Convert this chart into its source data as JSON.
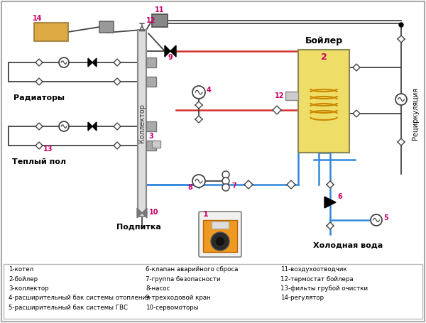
{
  "bg_color": "#f2f2f2",
  "border_color": "#bbbbbb",
  "legend_items_col1": [
    "1-котел",
    "2-бойлер",
    "3-коллектор",
    "4-расширительный бак системы отопления",
    "5-расширительный бак системы ГВС"
  ],
  "legend_items_col2": [
    "6-клапан аварийного сброса",
    "7-группа безопасности",
    "8-насос",
    "9-трехходовой кран",
    "10-сервомоторы"
  ],
  "legend_items_col3": [
    "11-воздухоотводчик",
    "12-термостат бойлера",
    "13-фильты грубой очистки",
    "14-регулятор"
  ],
  "label_radiatory": "Радиаторы",
  "label_teply_pol": "Теплый пол",
  "label_podpitka": "Подпитка",
  "label_kolektor": "Коллектор",
  "label_boyler": "Бойлер",
  "label_xolodnaya_voda": "Холодная вода",
  "label_retsirkulyatsiya": "Рециркуляция",
  "color_hot": "#d43030",
  "color_cold": "#3388dd",
  "color_pipe": "#444444",
  "color_boiler_fill": "#eedd66",
  "color_regulator_fill": "#ddaa44",
  "num_color": "#cc0066"
}
